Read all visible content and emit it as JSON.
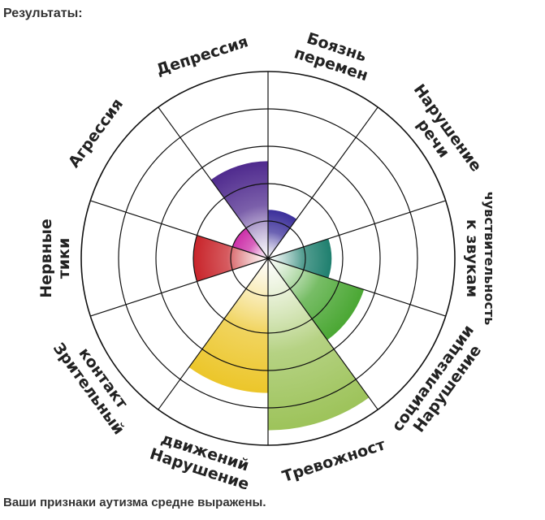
{
  "page": {
    "heading": "Результаты:",
    "result_text": "Ваши признаки аутизма средне выражены."
  },
  "chart_data": {
    "type": "polar-area",
    "rings": 5,
    "max": 5,
    "grid": true,
    "categories": [
      {
        "name": "Боязнь перемен",
        "lines": [
          "Боязнь",
          "перемен"
        ],
        "value": 1.3,
        "color": "#3b2f9a"
      },
      {
        "name": "Нарушение речи",
        "lines": [
          "Нарушение",
          "речи"
        ],
        "value": 0,
        "color": "#1d6f8a"
      },
      {
        "name": "Чувствительность к звукам",
        "lines": [
          "чувствительность",
          "к звукам"
        ],
        "value": 1.7,
        "color": "#1e7f6e"
      },
      {
        "name": "Нарушение социализации",
        "lines": [
          "Нарушение",
          "социализации"
        ],
        "value": 2.7,
        "color": "#4aa733"
      },
      {
        "name": "Тревожност",
        "lines": [
          "Тревожност"
        ],
        "value": 4.6,
        "color": "#9dc35a"
      },
      {
        "name": "Нарушение движений",
        "lines": [
          "Нарушение",
          "движений"
        ],
        "value": 3.6,
        "color": "#ecc62a"
      },
      {
        "name": "Зрительный контакт",
        "lines": [
          "Зрительный",
          "контакт"
        ],
        "value": 0,
        "color": "#e6a020"
      },
      {
        "name": "Нервные тики",
        "lines": [
          "Нервные",
          "тики"
        ],
        "value": 2.0,
        "color": "#c8242a"
      },
      {
        "name": "Агрессия",
        "lines": [
          "Агрессия"
        ],
        "value": 1.0,
        "color": "#cc2fa8"
      },
      {
        "name": "Депрессия",
        "lines": [
          "Депрессия"
        ],
        "value": 2.6,
        "color": "#4f2a8e"
      }
    ]
  }
}
